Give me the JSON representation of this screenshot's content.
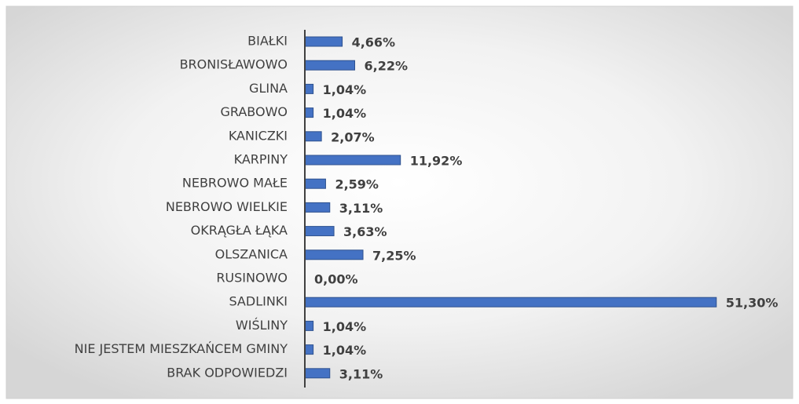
{
  "chart_data": {
    "type": "bar",
    "orientation": "horizontal",
    "categories": [
      "BIAŁKI",
      "BRONISŁAWOWO",
      "GLINA",
      "GRABOWO",
      "KANICZKI",
      "KARPINY",
      "NEBROWO MAŁE",
      "NEBROWO WIELKIE",
      "OKRĄGŁA ŁĄKA",
      "OLSZANICA",
      "RUSINOWO",
      "SADLINKI",
      "WIŚLINY",
      "NIE JESTEM MIESZKAŃCEM GMINY",
      "BRAK ODPOWIEDZI"
    ],
    "values": [
      4.66,
      6.22,
      1.04,
      1.04,
      2.07,
      11.92,
      2.59,
      3.11,
      3.63,
      7.25,
      0.0,
      51.3,
      1.04,
      1.04,
      3.11
    ],
    "value_labels": [
      "4,66%",
      "6,22%",
      "1,04%",
      "1,04%",
      "2,07%",
      "11,92%",
      "2,59%",
      "3,11%",
      "3,63%",
      "7,25%",
      "0,00%",
      "51,30%",
      "1,04%",
      "1,04%",
      "3,11%"
    ],
    "color": "#4472c4"
  }
}
